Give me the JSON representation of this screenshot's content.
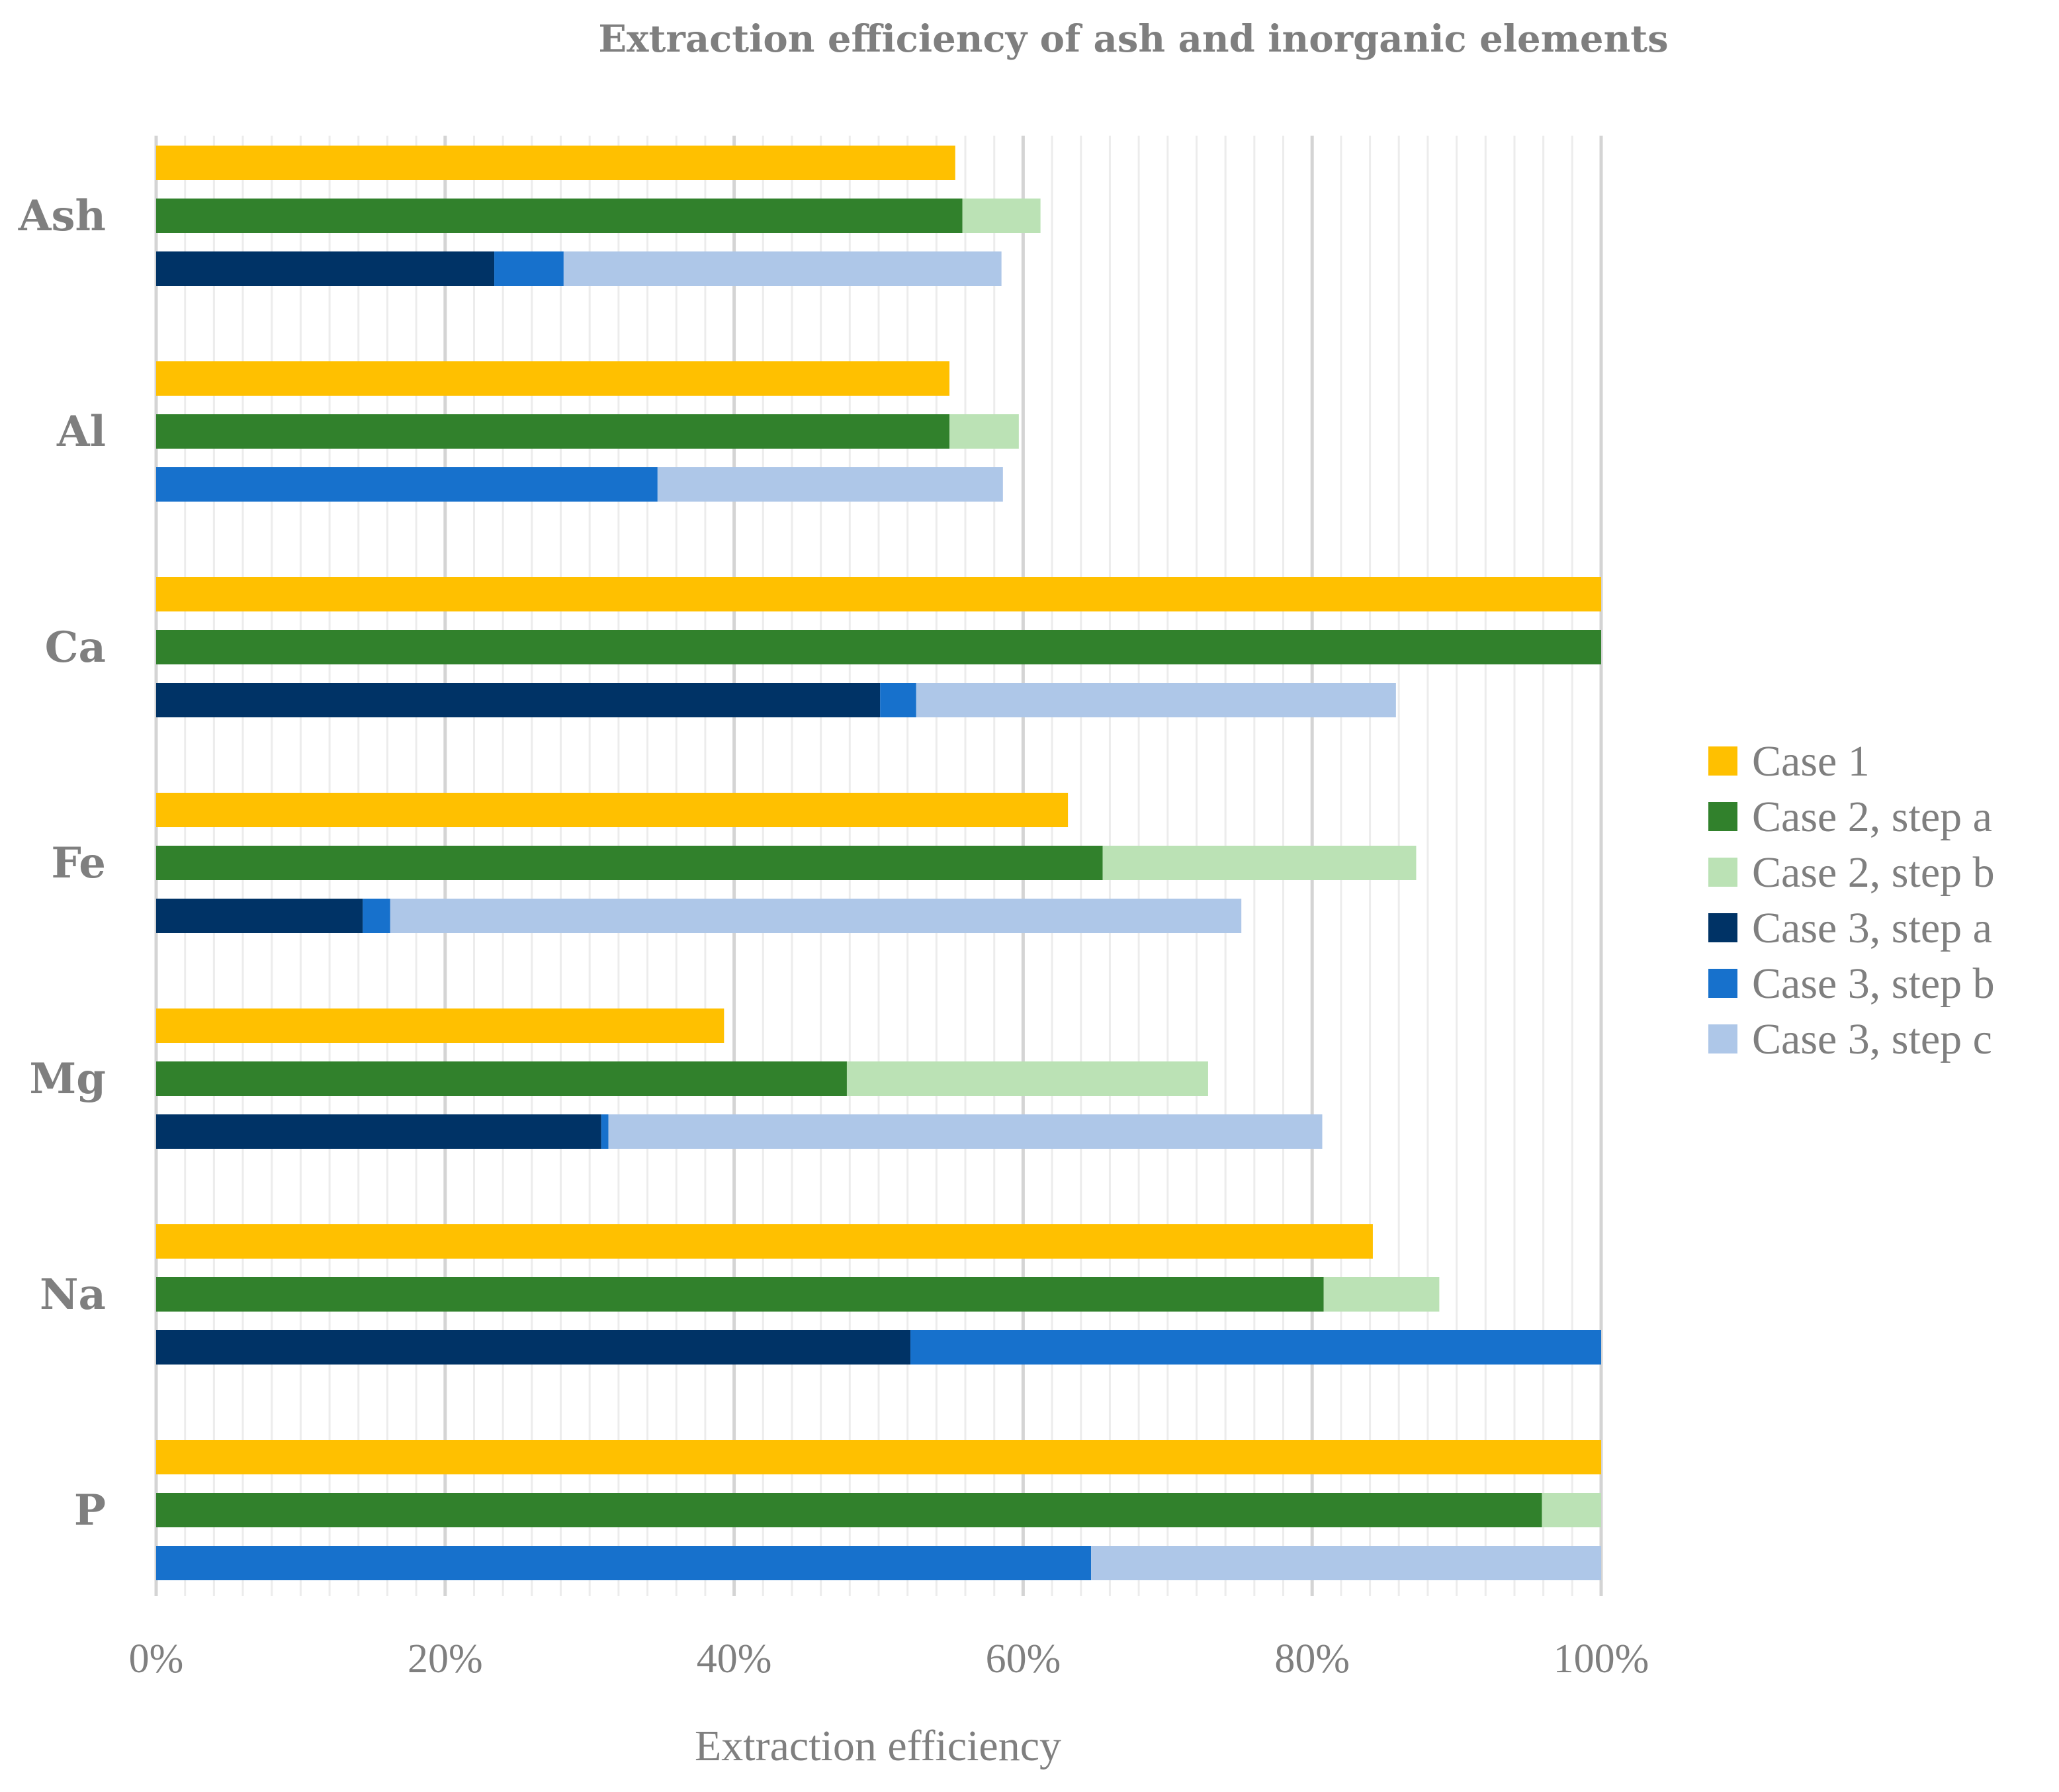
{
  "chart_data": {
    "type": "bar",
    "orientation": "horizontal",
    "stacked": true,
    "title": "Extraction efficiency of ash and inorganic elements",
    "xlabel": "Extraction efficiency",
    "ylabel": "",
    "xlim": [
      0,
      100
    ],
    "x_ticks": [
      "0%",
      "20%",
      "40%",
      "60%",
      "80%",
      "100%"
    ],
    "grid": true,
    "legend_position": "right",
    "categories": [
      "Ash",
      "Al",
      "Ca",
      "Fe",
      "Mg",
      "Na",
      "P"
    ],
    "series": [
      {
        "name": "Case 1",
        "group": "Case 1",
        "color": "#ffc000",
        "values": [
          55.3,
          54.9,
          100,
          63.1,
          39.3,
          84.2,
          100
        ]
      },
      {
        "name": "Case 2, step a",
        "group": "Case 2",
        "color": "#31812c",
        "values": [
          55.8,
          54.9,
          100,
          65.5,
          47.8,
          80.8,
          95.9
        ]
      },
      {
        "name": "Case 2, step b",
        "group": "Case 2",
        "color": "#bbe2b5",
        "values": [
          5.4,
          4.8,
          0,
          21.7,
          25.0,
          8.0,
          4.1
        ]
      },
      {
        "name": "Case 3, step a",
        "group": "Case 3",
        "color": "#003366",
        "values": [
          23.4,
          0,
          50.1,
          14.3,
          30.8,
          52.2,
          0
        ]
      },
      {
        "name": "Case 3, step b",
        "group": "Case 3",
        "color": "#1771cc",
        "values": [
          4.8,
          34.7,
          2.5,
          1.9,
          0.5,
          47.8,
          64.7
        ]
      },
      {
        "name": "Case 3, step c",
        "group": "Case 3",
        "color": "#aec7e8",
        "values": [
          30.3,
          23.9,
          33.2,
          58.9,
          49.4,
          0,
          35.3
        ]
      }
    ]
  }
}
